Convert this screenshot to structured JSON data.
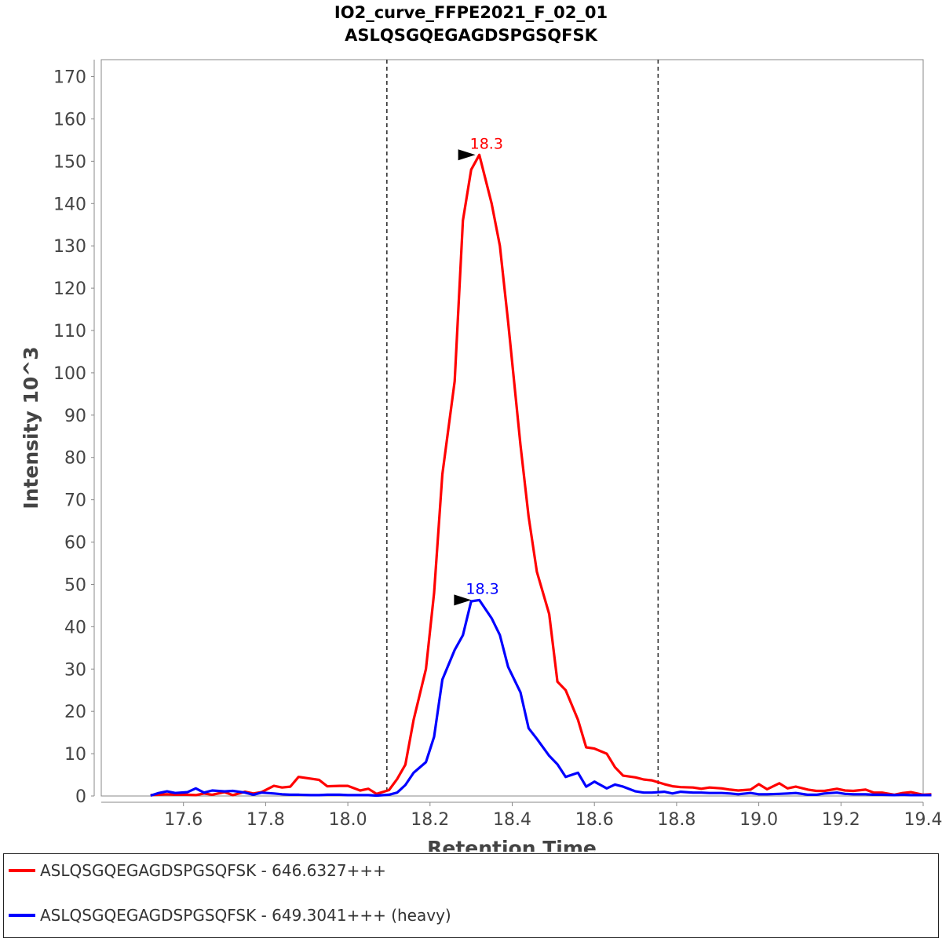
{
  "chart_data": {
    "type": "line",
    "title": "IO2_curve_FFPE2021_F_02_01",
    "subtitle": "ASLQSGQEGAGDSPGSQFSK",
    "xlabel": "Retention Time",
    "ylabel": "Intensity 10^3",
    "xlim": [
      17.4,
      19.4
    ],
    "ylim": [
      0,
      174
    ],
    "xticks": [
      "17.6",
      "17.8",
      "18.0",
      "18.2",
      "18.4",
      "18.6",
      "18.8",
      "19.0",
      "19.2",
      "19.4"
    ],
    "yticks": [
      "0",
      "10",
      "20",
      "30",
      "40",
      "50",
      "60",
      "70",
      "80",
      "90",
      "100",
      "110",
      "120",
      "130",
      "140",
      "150",
      "160",
      "170"
    ],
    "boundaries": [
      18.095,
      18.755
    ],
    "series": [
      {
        "name": "ASLQSGQEGAGDSPGSQFSK - 646.6327+++",
        "color": "#ff0000",
        "peak_label": "18.3",
        "peak": [
          18.32,
          151.5
        ],
        "points": [
          [
            17.52,
            0.2
          ],
          [
            17.54,
            0.3
          ],
          [
            17.56,
            0.4
          ],
          [
            17.58,
            0.3
          ],
          [
            17.61,
            0.3
          ],
          [
            17.63,
            0.2
          ],
          [
            17.65,
            0.6
          ],
          [
            17.67,
            0.3
          ],
          [
            17.7,
            0.9
          ],
          [
            17.72,
            0.2
          ],
          [
            17.75,
            1.0
          ],
          [
            17.77,
            0.6
          ],
          [
            17.79,
            0.9
          ],
          [
            17.82,
            2.4
          ],
          [
            17.84,
            2.0
          ],
          [
            17.86,
            2.2
          ],
          [
            17.88,
            4.5
          ],
          [
            17.91,
            4.1
          ],
          [
            17.93,
            3.8
          ],
          [
            17.95,
            2.3
          ],
          [
            17.98,
            2.4
          ],
          [
            18.0,
            2.4
          ],
          [
            18.03,
            1.3
          ],
          [
            18.05,
            1.7
          ],
          [
            18.07,
            0.5
          ],
          [
            18.1,
            1.4
          ],
          [
            18.12,
            4.0
          ],
          [
            18.14,
            7.4
          ],
          [
            18.16,
            18.0
          ],
          [
            18.19,
            30.0
          ],
          [
            18.21,
            48.0
          ],
          [
            18.23,
            76.0
          ],
          [
            18.26,
            98.0
          ],
          [
            18.28,
            136.0
          ],
          [
            18.3,
            148.0
          ],
          [
            18.32,
            151.5
          ],
          [
            18.35,
            140.0
          ],
          [
            18.37,
            130.0
          ],
          [
            18.39,
            112.0
          ],
          [
            18.42,
            83.0
          ],
          [
            18.44,
            66.0
          ],
          [
            18.46,
            53.0
          ],
          [
            18.49,
            43.0
          ],
          [
            18.51,
            27.0
          ],
          [
            18.53,
            25.0
          ],
          [
            18.56,
            18.0
          ],
          [
            18.58,
            11.5
          ],
          [
            18.6,
            11.2
          ],
          [
            18.63,
            10.0
          ],
          [
            18.65,
            6.8
          ],
          [
            18.67,
            4.8
          ],
          [
            18.7,
            4.4
          ],
          [
            18.72,
            3.9
          ],
          [
            18.74,
            3.7
          ],
          [
            18.77,
            2.8
          ],
          [
            18.79,
            2.3
          ],
          [
            18.81,
            2.1
          ],
          [
            18.84,
            2.0
          ],
          [
            18.86,
            1.7
          ],
          [
            18.88,
            2.0
          ],
          [
            18.91,
            1.8
          ],
          [
            18.93,
            1.5
          ],
          [
            18.95,
            1.3
          ],
          [
            18.98,
            1.5
          ],
          [
            19.0,
            2.8
          ],
          [
            19.02,
            1.6
          ],
          [
            19.05,
            3.0
          ],
          [
            19.07,
            1.8
          ],
          [
            19.09,
            2.2
          ],
          [
            19.12,
            1.5
          ],
          [
            19.14,
            1.2
          ],
          [
            19.16,
            1.2
          ],
          [
            19.19,
            1.7
          ],
          [
            19.21,
            1.3
          ],
          [
            19.23,
            1.2
          ],
          [
            19.26,
            1.5
          ],
          [
            19.28,
            0.8
          ],
          [
            19.3,
            0.8
          ],
          [
            19.33,
            0.3
          ],
          [
            19.35,
            0.7
          ],
          [
            19.37,
            0.9
          ],
          [
            19.4,
            0.3
          ],
          [
            19.42,
            0.4
          ]
        ]
      },
      {
        "name": "ASLQSGQEGAGDSPGSQFSK - 649.3041+++ (heavy)",
        "color": "#0000ff",
        "peak_label": "18.3",
        "peak": [
          18.31,
          46.3
        ],
        "points": [
          [
            17.52,
            0.1
          ],
          [
            17.54,
            0.7
          ],
          [
            17.56,
            1.1
          ],
          [
            17.58,
            0.7
          ],
          [
            17.61,
            0.9
          ],
          [
            17.63,
            1.8
          ],
          [
            17.65,
            0.8
          ],
          [
            17.67,
            1.3
          ],
          [
            17.7,
            1.1
          ],
          [
            17.72,
            1.2
          ],
          [
            17.75,
            0.8
          ],
          [
            17.77,
            0.3
          ],
          [
            17.79,
            0.8
          ],
          [
            17.82,
            0.6
          ],
          [
            17.84,
            0.4
          ],
          [
            17.86,
            0.3
          ],
          [
            17.88,
            0.3
          ],
          [
            17.91,
            0.2
          ],
          [
            17.93,
            0.2
          ],
          [
            17.95,
            0.3
          ],
          [
            17.98,
            0.3
          ],
          [
            18.0,
            0.2
          ],
          [
            18.03,
            0.2
          ],
          [
            18.05,
            0.2
          ],
          [
            18.07,
            0.1
          ],
          [
            18.1,
            0.3
          ],
          [
            18.12,
            0.8
          ],
          [
            18.14,
            2.6
          ],
          [
            18.16,
            5.5
          ],
          [
            18.19,
            8.0
          ],
          [
            18.21,
            14.0
          ],
          [
            18.23,
            27.5
          ],
          [
            18.26,
            34.5
          ],
          [
            18.28,
            38.0
          ],
          [
            18.3,
            46.0
          ],
          [
            18.32,
            46.3
          ],
          [
            18.35,
            42.0
          ],
          [
            18.37,
            38.0
          ],
          [
            18.39,
            30.5
          ],
          [
            18.42,
            24.5
          ],
          [
            18.44,
            16.0
          ],
          [
            18.46,
            13.5
          ],
          [
            18.49,
            9.5
          ],
          [
            18.51,
            7.5
          ],
          [
            18.53,
            4.5
          ],
          [
            18.56,
            5.5
          ],
          [
            18.58,
            2.2
          ],
          [
            18.6,
            3.4
          ],
          [
            18.63,
            1.8
          ],
          [
            18.65,
            2.7
          ],
          [
            18.67,
            2.2
          ],
          [
            18.7,
            1.1
          ],
          [
            18.72,
            0.8
          ],
          [
            18.74,
            0.8
          ],
          [
            18.77,
            1.0
          ],
          [
            18.79,
            0.6
          ],
          [
            18.81,
            1.0
          ],
          [
            18.84,
            0.8
          ],
          [
            18.86,
            0.8
          ],
          [
            18.88,
            0.7
          ],
          [
            18.91,
            0.7
          ],
          [
            18.93,
            0.6
          ],
          [
            18.95,
            0.4
          ],
          [
            18.98,
            0.7
          ],
          [
            19.0,
            0.4
          ],
          [
            19.02,
            0.4
          ],
          [
            19.05,
            0.5
          ],
          [
            19.07,
            0.6
          ],
          [
            19.09,
            0.7
          ],
          [
            19.12,
            0.3
          ],
          [
            19.14,
            0.3
          ],
          [
            19.16,
            0.6
          ],
          [
            19.19,
            0.8
          ],
          [
            19.21,
            0.5
          ],
          [
            19.23,
            0.4
          ],
          [
            19.26,
            0.4
          ],
          [
            19.28,
            0.3
          ],
          [
            19.3,
            0.3
          ],
          [
            19.33,
            0.2
          ],
          [
            19.35,
            0.3
          ],
          [
            19.37,
            0.2
          ],
          [
            19.4,
            0.2
          ],
          [
            19.42,
            0.2
          ]
        ]
      }
    ]
  },
  "legend": {
    "items": [
      {
        "label": "ASLQSGQEGAGDSPGSQFSK - 646.6327+++",
        "color": "#ff0000"
      },
      {
        "label": "ASLQSGQEGAGDSPGSQFSK - 649.3041+++ (heavy)",
        "color": "#0000ff"
      }
    ]
  }
}
